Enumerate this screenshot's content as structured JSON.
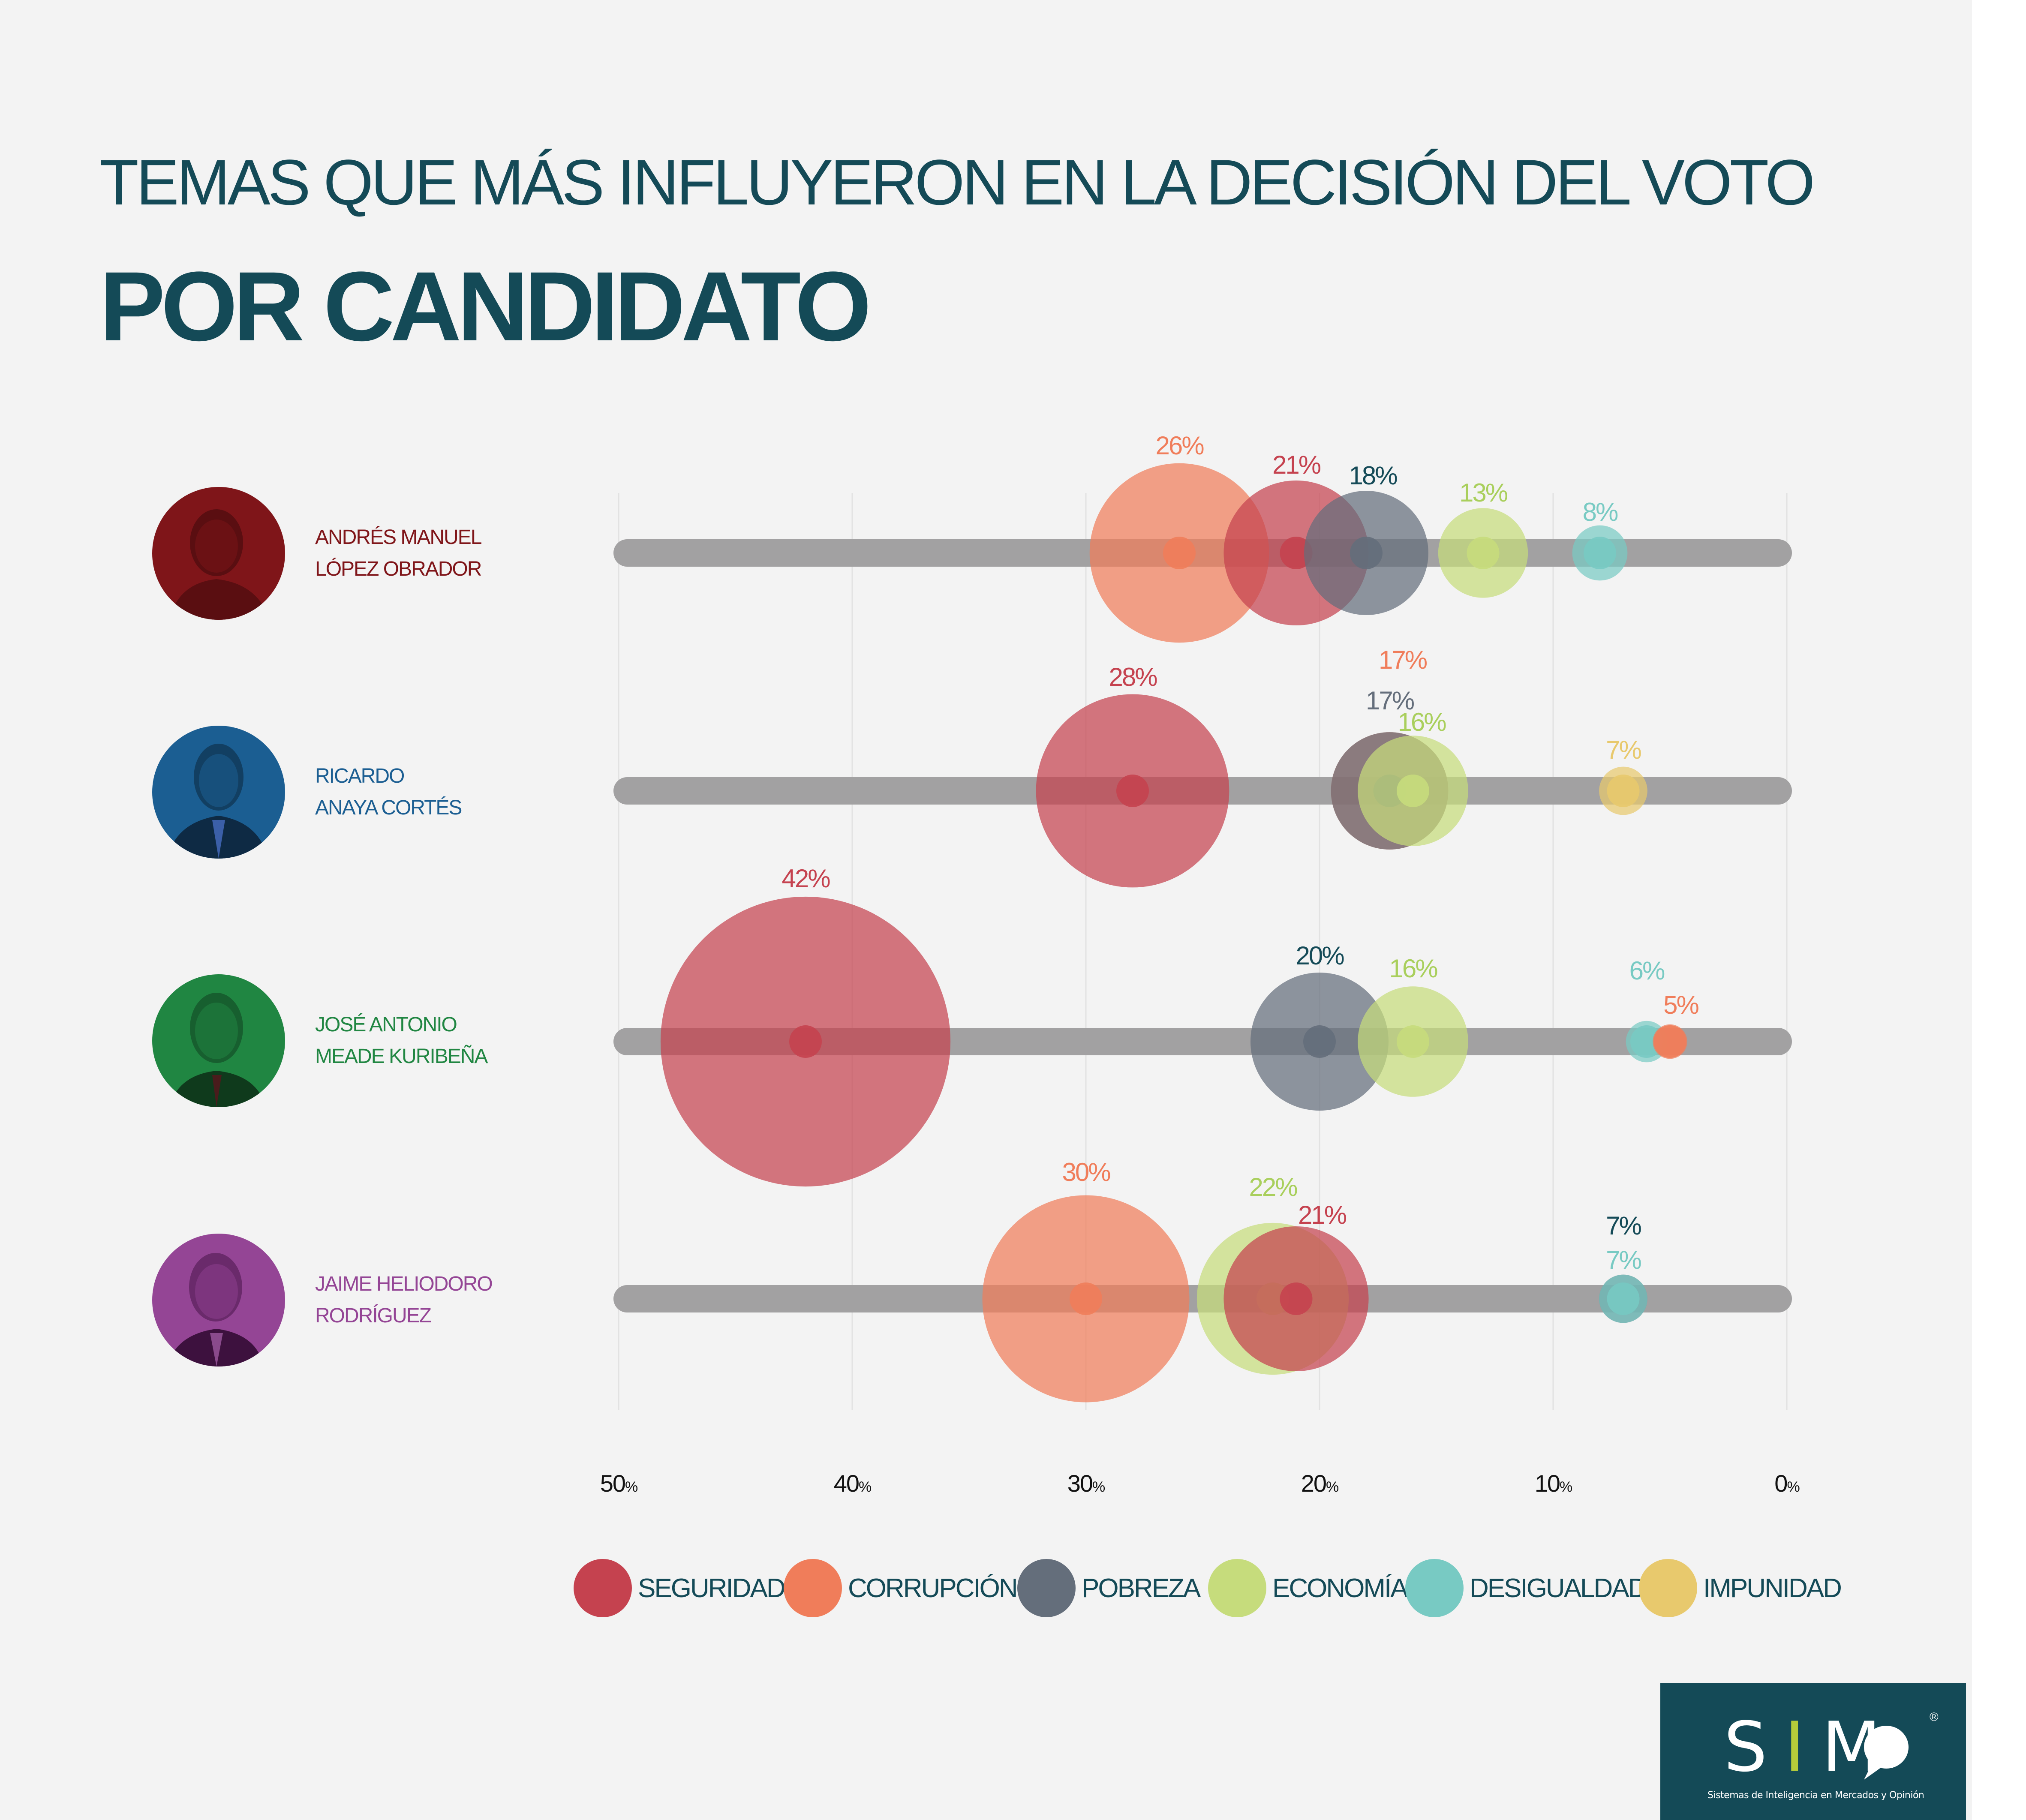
{
  "title": {
    "line1": "TEMAS QUE MÁS INFLUYERON EN LA DECISIÓN DEL VOTO",
    "line2": "POR CANDIDATO"
  },
  "colors": {
    "background": "#f3f3f3",
    "title": "#144a57",
    "track": "#a2a1a2",
    "Seguridad": "#c5424f",
    "Corrupción": "#f07d5a",
    "Pobreza": "#646e7b",
    "Economía": "#c6dc7c",
    "Desigualdad": "#78cac3",
    "Impunidad": "#e8c96d"
  },
  "candidates": [
    {
      "name_line1": "ANDRÉS MANUEL",
      "name_line2": "LÓPEZ OBRADOR",
      "color": "#7f1519",
      "avatar": "portrait-icon"
    },
    {
      "name_line1": "RICARDO",
      "name_line2": "ANAYA CORTÉS",
      "color": "#1b5e92",
      "avatar": "portrait-icon"
    },
    {
      "name_line1": "JOSÉ ANTONIO",
      "name_line2": "MEADE KURIBEÑA",
      "color": "#208642",
      "avatar": "portrait-icon"
    },
    {
      "name_line1": "JAIME HELIODORO",
      "name_line2": "RODRÍGUEZ",
      "color": "#944595",
      "avatar": "portrait-icon"
    }
  ],
  "chart_data": {
    "type": "scatter",
    "subtype": "bubble-strip",
    "title": "Temas que más influyeron en la decisión del voto por candidato",
    "xlabel": "",
    "ylabel": "",
    "x_reversed": true,
    "xlim": [
      50,
      0
    ],
    "x_ticks": [
      50,
      40,
      30,
      20,
      10,
      0
    ],
    "x_tick_labels": [
      "50",
      "40",
      "30",
      "20",
      "10",
      "0"
    ],
    "x_tick_suffix": "%",
    "grid": true,
    "legend_position": "bottom",
    "categories": [
      "ANDRÉS MANUEL LÓPEZ OBRADOR",
      "RICARDO ANAYA CORTÉS",
      "JOSÉ ANTONIO MEADE KURIBEÑA",
      "JAIME HELIODORO RODRÍGUEZ"
    ],
    "series": [
      {
        "name": "SEGURIDAD",
        "key": "Seguridad",
        "values": [
          21,
          28,
          42,
          21
        ]
      },
      {
        "name": "CORRUPCIÓN",
        "key": "Corrupción",
        "values": [
          26,
          17,
          5,
          30
        ]
      },
      {
        "name": "POBREZA",
        "key": "Pobreza",
        "values": [
          18,
          17,
          20,
          7
        ]
      },
      {
        "name": "ECONOMÍA",
        "key": "Economía",
        "values": [
          13,
          16,
          16,
          22
        ]
      },
      {
        "name": "DESIGUALDAD",
        "key": "Desigualdad",
        "values": [
          8,
          null,
          6,
          7
        ]
      },
      {
        "name": "IMPUNIDAD",
        "key": "Impunidad",
        "values": [
          null,
          7,
          null,
          null
        ]
      }
    ],
    "labels": [
      [
        {
          "series": "Corrupción",
          "text": "26%"
        },
        {
          "series": "Seguridad",
          "text": "21%"
        },
        {
          "series": "Pobreza",
          "text": "18%"
        },
        {
          "series": "Economía",
          "text": "13%"
        },
        {
          "series": "Desigualdad",
          "text": "8%"
        }
      ],
      [
        {
          "series": "Seguridad",
          "text": "28%"
        },
        {
          "series": "Corrupción",
          "text": "17%"
        },
        {
          "series": "Pobreza",
          "text": "17%"
        },
        {
          "series": "Economía",
          "text": "16%"
        },
        {
          "series": "Impunidad",
          "text": "7%"
        }
      ],
      [
        {
          "series": "Seguridad",
          "text": "42%"
        },
        {
          "series": "Pobreza",
          "text": "20%"
        },
        {
          "series": "Economía",
          "text": "16%"
        },
        {
          "series": "Desigualdad",
          "text": "6%"
        },
        {
          "series": "Corrupción",
          "text": "5%"
        }
      ],
      [
        {
          "series": "Corrupción",
          "text": "30%"
        },
        {
          "series": "Economía",
          "text": "22%"
        },
        {
          "series": "Seguridad",
          "text": "21%"
        },
        {
          "series": "Pobreza",
          "text": "7%"
        },
        {
          "series": "Desigualdad",
          "text": "7%"
        }
      ]
    ]
  },
  "legend": [
    {
      "label": "SEGURIDAD",
      "color": "#c5424f"
    },
    {
      "label": "CORRUPCIÓN",
      "color": "#f07d5a"
    },
    {
      "label": "POBREZA",
      "color": "#646e7b"
    },
    {
      "label": "ECONOMÍA",
      "color": "#c6dc7c"
    },
    {
      "label": "DESIGUALDAD",
      "color": "#78cac3"
    },
    {
      "label": "IMPUNIDAD",
      "color": "#e8c96d"
    }
  ],
  "logo": {
    "mark_s": "S",
    "mark_i": "I",
    "mark_m": "M",
    "registered": "®",
    "subtitle": "Sistemas de Inteligencia en Mercados y Opinión"
  }
}
